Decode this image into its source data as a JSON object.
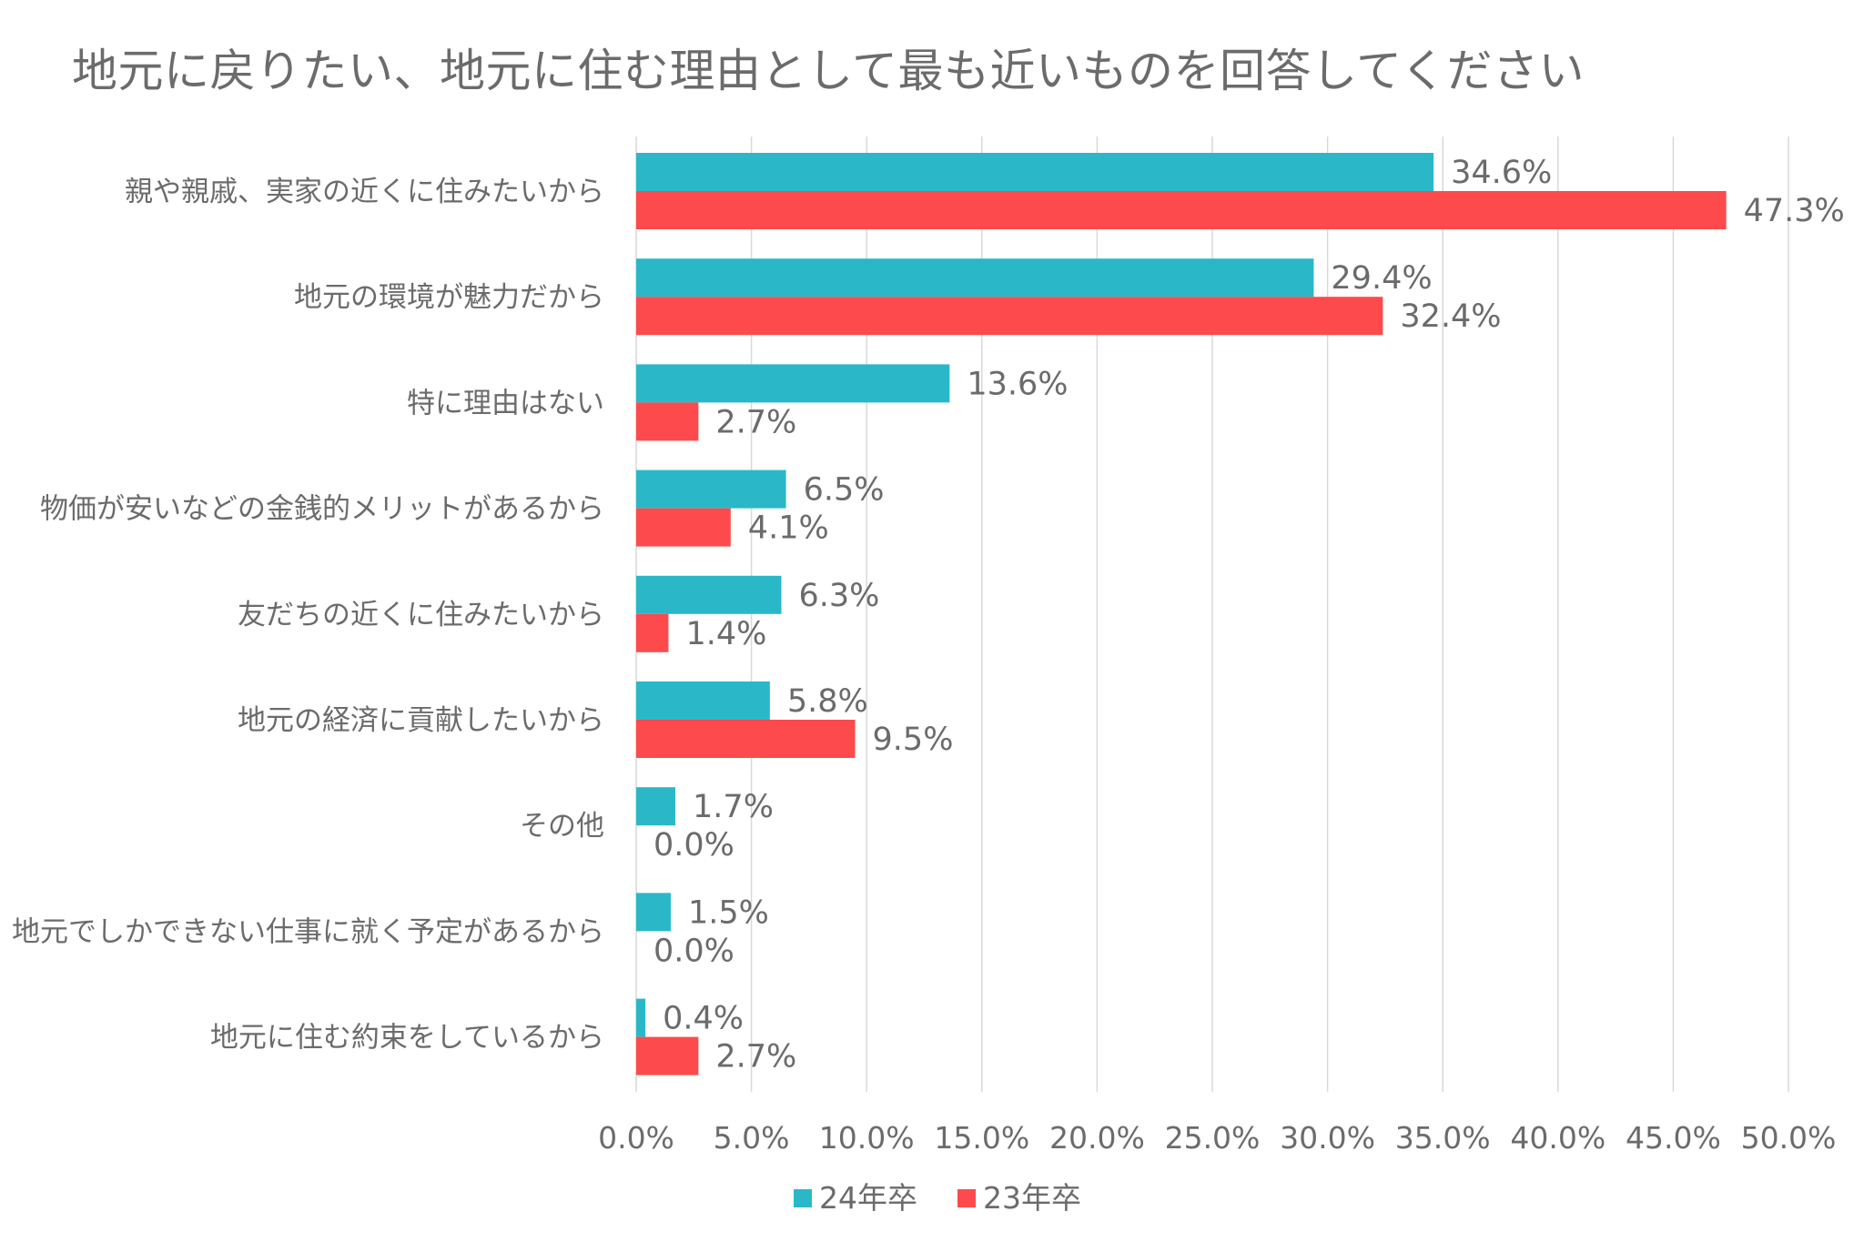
{
  "chart_data": {
    "type": "bar",
    "orientation": "horizontal",
    "title": "地元に戻りたい、地元に住む理由として最も近いものを回答してください",
    "categories": [
      "親や親戚、実家の近くに住みたいから",
      "地元の環境が魅力だから",
      "特に理由はない",
      "物価が安いなどの金銭的メリットがあるから",
      "友だちの近くに住みたいから",
      "地元の経済に貢献したいから",
      "その他",
      "地元でしかできない仕事に就く予定があるから",
      "地元に住む約束をしているから"
    ],
    "series": [
      {
        "name": "24年卒",
        "color": "#2ab8c8",
        "values": [
          34.6,
          29.4,
          13.6,
          6.5,
          6.3,
          5.8,
          1.7,
          1.5,
          0.4
        ],
        "labels": [
          "34.6%",
          "29.4%",
          "13.6%",
          "6.5%",
          "6.3%",
          "5.8%",
          "1.7%",
          "1.5%",
          "0.4%"
        ]
      },
      {
        "name": "23年卒",
        "color": "#fd4a4c",
        "values": [
          47.3,
          32.4,
          2.7,
          4.1,
          1.4,
          9.5,
          0.0,
          0.0,
          2.7
        ],
        "labels": [
          "47.3%",
          "32.4%",
          "2.7%",
          "4.1%",
          "1.4%",
          "9.5%",
          "0.0%",
          "0.0%",
          "2.7%"
        ]
      }
    ],
    "xlim": [
      0,
      50
    ],
    "xticks": [
      0,
      5,
      10,
      15,
      20,
      25,
      30,
      35,
      40,
      45,
      50
    ],
    "xtick_labels": [
      "0.0%",
      "5.0%",
      "10.0%",
      "15.0%",
      "20.0%",
      "25.0%",
      "30.0%",
      "35.0%",
      "40.0%",
      "45.0%",
      "50.0%"
    ],
    "xlabel": "",
    "ylabel": "",
    "grid": "vertical",
    "legend_position": "bottom-center"
  }
}
